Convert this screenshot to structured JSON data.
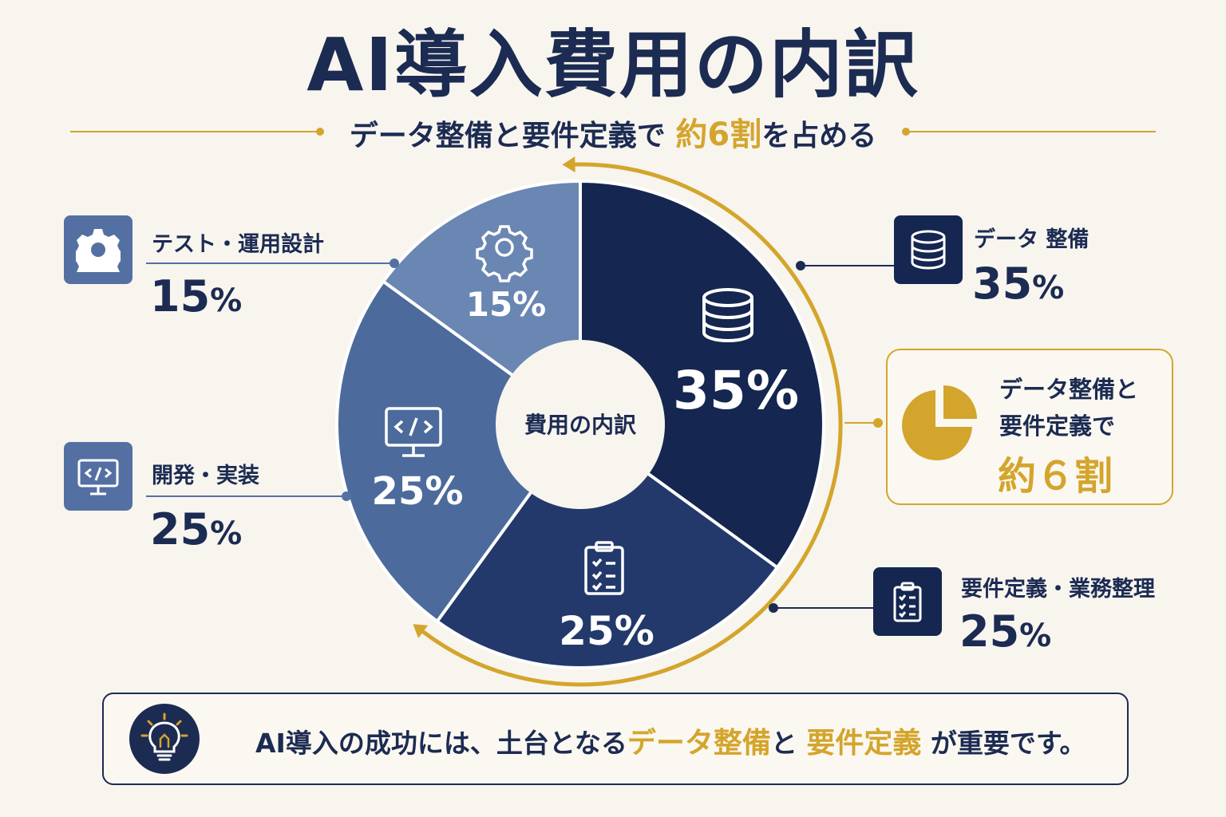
{
  "title": "AI導入費用の内訳",
  "subtitle": {
    "before": "データ整備と要件定義で",
    "highlight": "約6割",
    "after": "を占める"
  },
  "colors": {
    "navy_dark": "#152650",
    "navy_mid": "#23396b",
    "blue_mid": "#4c6b9c",
    "blue_light": "#6a86b3",
    "gold": "#d4a52c",
    "background": "#f8f5ef"
  },
  "chart_data": {
    "type": "pie",
    "style": "donut",
    "center_label": "費用の内訳",
    "slices": [
      {
        "name": "データ 整備",
        "value": 35,
        "label": "35%",
        "color": "#152650",
        "icon": "database-icon"
      },
      {
        "name": "要件定義・業務整理",
        "value": 25,
        "label": "25%",
        "color": "#23396b",
        "icon": "clipboard-icon"
      },
      {
        "name": "開発・実装",
        "value": 25,
        "label": "25%",
        "color": "#4c6b9c",
        "icon": "code-monitor-icon"
      },
      {
        "name": "テスト・運用設計",
        "value": 15,
        "label": "15%",
        "color": "#6a86b3",
        "icon": "gear-icon"
      }
    ],
    "highlight_arc": "データ整備 + 要件定義・業務整理"
  },
  "legend": {
    "test": {
      "label": "テスト・運用設計",
      "num": "15",
      "pct": "%",
      "icon": "gear-icon",
      "color": "#5470a3"
    },
    "dev": {
      "label": "開発・実装",
      "num": "25",
      "pct": "%",
      "icon": "code-monitor-icon",
      "color": "#5470a3"
    },
    "data": {
      "label": "データ 整備",
      "num": "35",
      "pct": "%",
      "icon": "database-icon",
      "color": "#152650"
    },
    "req": {
      "label": "要件定義・業務整理",
      "num": "25",
      "pct": "%",
      "icon": "clipboard-icon",
      "color": "#152650"
    }
  },
  "callout": {
    "line1": "データ整備と",
    "line2": "要件定義で",
    "big": "約６割",
    "icon": "pie-chart-icon"
  },
  "bottom": {
    "text_before": "AI導入の成功には、土台となる",
    "hl1": "データ整備",
    "mid": "と",
    "hl2": "要件定義",
    "text_after": "が重要です。",
    "icon": "lightbulb-icon"
  }
}
